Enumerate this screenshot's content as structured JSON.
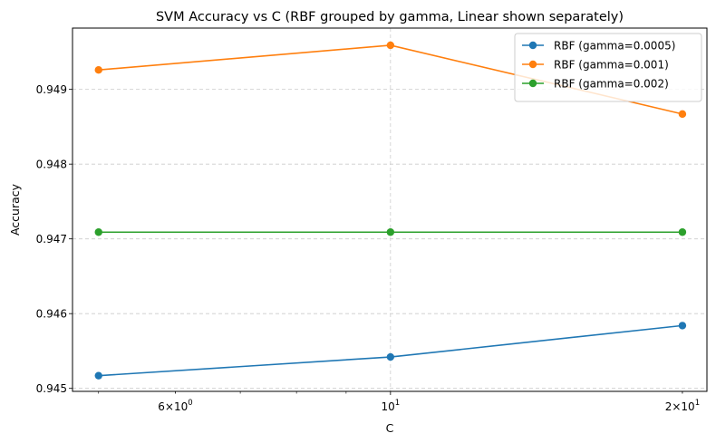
{
  "chart_data": {
    "type": "line",
    "title": "SVM Accuracy vs C (RBF grouped by gamma, Linear shown separately)",
    "xlabel": "C",
    "ylabel": "Accuracy",
    "xscale": "log",
    "x": [
      5,
      10,
      20
    ],
    "xlim": [
      4.7,
      21.2
    ],
    "ylim": [
      0.94496,
      0.94982
    ],
    "xticks": [
      {
        "value": 6,
        "base": "6",
        "mult": "6×",
        "pow": "10",
        "exp": "0",
        "kind": "minor-labeled"
      },
      {
        "value": 10,
        "base": "10",
        "mult": "",
        "pow": "",
        "exp": "1",
        "kind": "major"
      },
      {
        "value": 20,
        "base": "2",
        "mult": "2×",
        "pow": "10",
        "exp": "1",
        "kind": "minor-labeled"
      }
    ],
    "yticks": [
      {
        "value": 0.945,
        "label": "0.945"
      },
      {
        "value": 0.946,
        "label": "0.946"
      },
      {
        "value": 0.947,
        "label": "0.947"
      },
      {
        "value": 0.948,
        "label": "0.948"
      },
      {
        "value": 0.949,
        "label": "0.949"
      }
    ],
    "grid": true,
    "legend_position": "top-right",
    "series": [
      {
        "name": "RBF (gamma=0.0005)",
        "color": "#1f77b4",
        "values": [
          0.94517,
          0.94542,
          0.94584
        ]
      },
      {
        "name": "RBF (gamma=0.001)",
        "color": "#ff7f0e",
        "values": [
          0.94926,
          0.94959,
          0.94867
        ]
      },
      {
        "name": "RBF (gamma=0.002)",
        "color": "#2ca02c",
        "values": [
          0.94709,
          0.94709,
          0.94709
        ]
      }
    ]
  }
}
